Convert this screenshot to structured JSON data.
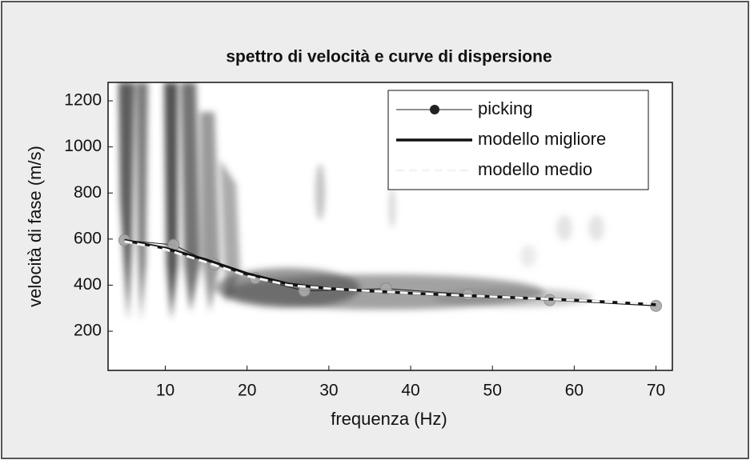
{
  "chart_data": {
    "type": "line",
    "title": "spettro di velocità e curve di dispersione",
    "xlabel": "frequenza (Hz)",
    "ylabel": "velocità di fase (m/s)",
    "xlim": [
      3,
      72
    ],
    "ylim": [
      30,
      1280
    ],
    "xticks": [
      10,
      20,
      30,
      40,
      50,
      60,
      70
    ],
    "yticks": [
      200,
      400,
      600,
      800,
      1000,
      1200
    ],
    "legend": "upper right",
    "series": [
      {
        "name": "picking",
        "color": "#222222",
        "width": 1,
        "dash": false,
        "marker": true,
        "x": [
          5,
          11,
          16,
          21,
          27,
          37,
          47,
          57,
          70
        ],
        "values": [
          595,
          575,
          490,
          430,
          375,
          385,
          360,
          335,
          310
        ]
      },
      {
        "name": "modello migliore",
        "color": "#111111",
        "width": 3.5,
        "dash": false,
        "marker": false,
        "x": [
          5,
          10,
          15,
          20,
          25,
          30,
          40,
          50,
          60,
          70
        ],
        "values": [
          595,
          560,
          510,
          450,
          405,
          385,
          365,
          350,
          335,
          315
        ]
      },
      {
        "name": "modello medio",
        "color": "#f4f4f4",
        "width": 3,
        "dash": true,
        "marker": false,
        "x": [
          5,
          10,
          15,
          20,
          25,
          30,
          40,
          50,
          60,
          70
        ],
        "values": [
          590,
          555,
          500,
          440,
          400,
          385,
          365,
          350,
          335,
          318
        ]
      }
    ]
  }
}
